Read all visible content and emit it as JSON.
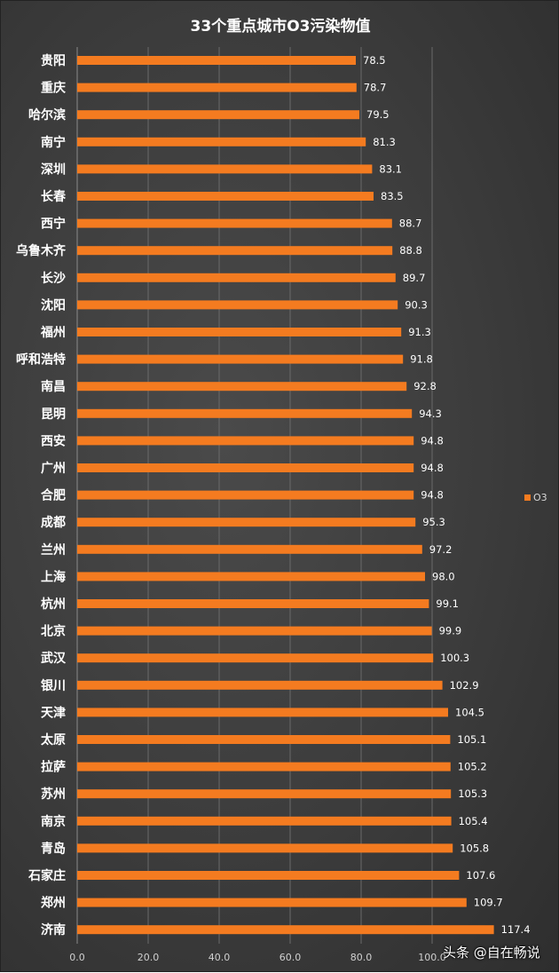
{
  "chart_data": {
    "type": "bar",
    "orientation": "horizontal",
    "title": "33个重点城市O3污染物值",
    "categories": [
      "贵阳",
      "重庆",
      "哈尔滨",
      "南宁",
      "深圳",
      "长春",
      "西宁",
      "乌鲁木齐",
      "长沙",
      "沈阳",
      "福州",
      "呼和浩特",
      "南昌",
      "昆明",
      "西安",
      "广州",
      "合肥",
      "成都",
      "兰州",
      "上海",
      "杭州",
      "北京",
      "武汉",
      "银川",
      "天津",
      "太原",
      "拉萨",
      "苏州",
      "南京",
      "青岛",
      "石家庄",
      "郑州",
      "济南"
    ],
    "series": [
      {
        "name": "O3",
        "values": [
          78.5,
          78.7,
          79.5,
          81.3,
          83.1,
          83.5,
          88.7,
          88.8,
          89.7,
          90.3,
          91.3,
          91.8,
          92.8,
          94.3,
          94.8,
          94.8,
          94.8,
          95.3,
          97.2,
          98.0,
          99.1,
          99.9,
          100.3,
          102.9,
          104.5,
          105.1,
          105.2,
          105.3,
          105.4,
          105.8,
          107.6,
          109.7,
          117.4
        ],
        "data_labels": [
          "78.5",
          "78.7",
          "79.5",
          "81.3",
          "83.1",
          "83.5",
          "88.7",
          "88.8",
          "89.7",
          "90.3",
          "91.3",
          "91.8",
          "92.8",
          "94.3",
          "94.8",
          "94.8",
          "94.8",
          "95.3",
          "97.2",
          "98.0",
          "99.1",
          "99.9",
          "100.3",
          "102.9",
          "104.5",
          "105.1",
          "105.2",
          "105.3",
          "105.4",
          "105.8",
          "107.6",
          "109.7",
          "117.4"
        ]
      }
    ],
    "xlim": [
      0,
      140
    ],
    "x_ticks": [
      "0.0",
      "20.0",
      "40.0",
      "60.0",
      "80.0",
      "100.0"
    ],
    "grid": true,
    "legend_position": "right",
    "bar_color": "#f47b20",
    "gridline_color": "#6a6a6a"
  },
  "watermark": "头条 @自在畅说"
}
